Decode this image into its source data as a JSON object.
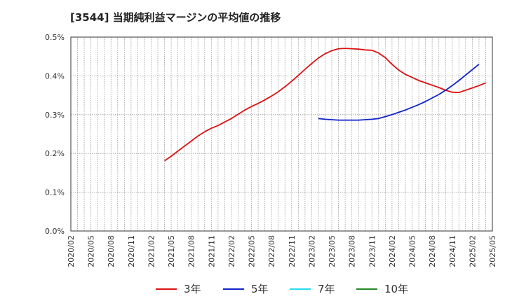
{
  "chart_data": {
    "type": "line",
    "title": "[3544]  当期純利益マージンの平均値の推移",
    "xlabel": "",
    "ylabel": "",
    "ylim": [
      0,
      0.5
    ],
    "y_ticks": [
      "0.0%",
      "0.1%",
      "0.2%",
      "0.3%",
      "0.4%",
      "0.5%"
    ],
    "x_start": "2020/02",
    "x_end": "2025/05",
    "x_tick_labels": [
      "2020/02",
      "2020/05",
      "2020/08",
      "2020/11",
      "2021/02",
      "2021/05",
      "2021/08",
      "2021/11",
      "2022/02",
      "2022/05",
      "2022/08",
      "2022/11",
      "2023/02",
      "2023/05",
      "2023/08",
      "2023/11",
      "2024/02",
      "2024/05",
      "2024/08",
      "2024/11",
      "2025/02",
      "2025/05"
    ],
    "grid": true,
    "legend_position": "bottom",
    "series": [
      {
        "name": "3年",
        "color": "#dd1111",
        "points": [
          [
            "2021/04",
            0.181
          ],
          [
            "2021/05",
            0.193
          ],
          [
            "2021/06",
            0.206
          ],
          [
            "2021/07",
            0.219
          ],
          [
            "2021/08",
            0.232
          ],
          [
            "2021/09",
            0.245
          ],
          [
            "2021/10",
            0.256
          ],
          [
            "2021/11",
            0.265
          ],
          [
            "2021/12",
            0.272
          ],
          [
            "2022/01",
            0.281
          ],
          [
            "2022/02",
            0.29
          ],
          [
            "2022/03",
            0.301
          ],
          [
            "2022/04",
            0.312
          ],
          [
            "2022/05",
            0.321
          ],
          [
            "2022/06",
            0.329
          ],
          [
            "2022/07",
            0.338
          ],
          [
            "2022/08",
            0.348
          ],
          [
            "2022/09",
            0.359
          ],
          [
            "2022/10",
            0.372
          ],
          [
            "2022/11",
            0.386
          ],
          [
            "2022/12",
            0.401
          ],
          [
            "2023/01",
            0.417
          ],
          [
            "2023/02",
            0.432
          ],
          [
            "2023/03",
            0.446
          ],
          [
            "2023/04",
            0.457
          ],
          [
            "2023/05",
            0.465
          ],
          [
            "2023/06",
            0.47
          ],
          [
            "2023/07",
            0.471
          ],
          [
            "2023/08",
            0.47
          ],
          [
            "2023/09",
            0.469
          ],
          [
            "2023/10",
            0.467
          ],
          [
            "2023/11",
            0.466
          ],
          [
            "2023/12",
            0.459
          ],
          [
            "2024/01",
            0.447
          ],
          [
            "2024/02",
            0.43
          ],
          [
            "2024/03",
            0.415
          ],
          [
            "2024/04",
            0.404
          ],
          [
            "2024/05",
            0.396
          ],
          [
            "2024/06",
            0.388
          ],
          [
            "2024/07",
            0.382
          ],
          [
            "2024/08",
            0.376
          ],
          [
            "2024/09",
            0.37
          ],
          [
            "2024/10",
            0.363
          ],
          [
            "2024/11",
            0.358
          ],
          [
            "2024/12",
            0.357
          ],
          [
            "2025/01",
            0.363
          ],
          [
            "2025/02",
            0.369
          ],
          [
            "2025/03",
            0.375
          ],
          [
            "2025/04",
            0.382
          ]
        ]
      },
      {
        "name": "5年",
        "color": "#1122cc",
        "points": [
          [
            "2023/03",
            0.29
          ],
          [
            "2023/04",
            0.288
          ],
          [
            "2023/05",
            0.287
          ],
          [
            "2023/06",
            0.286
          ],
          [
            "2023/07",
            0.286
          ],
          [
            "2023/08",
            0.286
          ],
          [
            "2023/09",
            0.286
          ],
          [
            "2023/10",
            0.287
          ],
          [
            "2023/11",
            0.288
          ],
          [
            "2023/12",
            0.29
          ],
          [
            "2024/01",
            0.295
          ],
          [
            "2024/02",
            0.3
          ],
          [
            "2024/03",
            0.306
          ],
          [
            "2024/04",
            0.312
          ],
          [
            "2024/05",
            0.319
          ],
          [
            "2024/06",
            0.326
          ],
          [
            "2024/07",
            0.334
          ],
          [
            "2024/08",
            0.343
          ],
          [
            "2024/09",
            0.352
          ],
          [
            "2024/10",
            0.363
          ],
          [
            "2024/11",
            0.375
          ],
          [
            "2024/12",
            0.388
          ],
          [
            "2025/01",
            0.402
          ],
          [
            "2025/02",
            0.416
          ],
          [
            "2025/03",
            0.43
          ]
        ]
      },
      {
        "name": "7年",
        "color": "#22ddee",
        "points": []
      },
      {
        "name": "10年",
        "color": "#228822",
        "points": []
      }
    ]
  }
}
